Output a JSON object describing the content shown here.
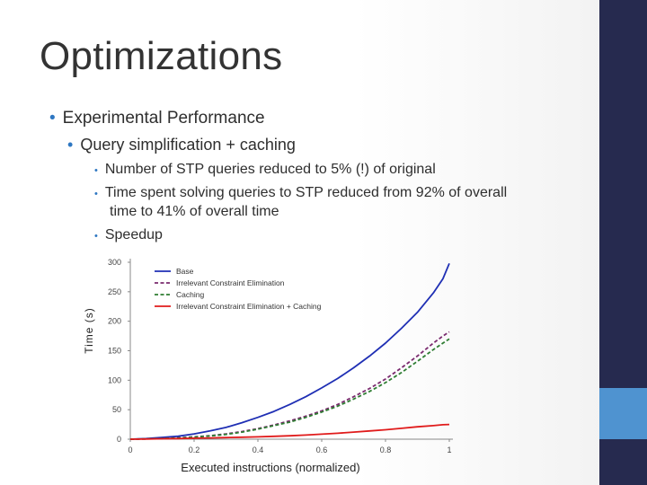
{
  "slide": {
    "title": "Optimizations",
    "bullets": {
      "level1": "Experimental Performance",
      "level2": "Query simplification + caching",
      "level3": [
        {
          "line1": "Number of STP queries reduced to 5% (!) of original",
          "line2": ""
        },
        {
          "line1": "Time spent solving queries to STP reduced from 92% of overall",
          "line2": "time to 41% of overall time"
        },
        {
          "line1": "Speedup",
          "line2": ""
        }
      ]
    },
    "bullet_glyph": "•",
    "colors": {
      "sidebar": "#262a4f",
      "accent": "#4f93d0",
      "bullet": "#2e77c2"
    }
  },
  "chart_data": {
    "type": "line",
    "title": "",
    "xlabel": "Executed instructions (normalized)",
    "ylabel": "Time (s)",
    "xlim": [
      0,
      1
    ],
    "ylim": [
      0,
      300
    ],
    "xticks": [
      "0",
      "0.2",
      "0.4",
      "0.6",
      "0.8",
      "1"
    ],
    "yticks": [
      "0",
      "50",
      "100",
      "150",
      "200",
      "250",
      "300"
    ],
    "legend_position": "top-left",
    "x": [
      0,
      0.05,
      0.1,
      0.15,
      0.2,
      0.25,
      0.3,
      0.35,
      0.4,
      0.45,
      0.5,
      0.55,
      0.6,
      0.65,
      0.7,
      0.75,
      0.8,
      0.85,
      0.9,
      0.95,
      0.98,
      1.0
    ],
    "series": [
      {
        "name": "Base",
        "color": "#1f2fb4",
        "dash": "solid",
        "values": [
          0,
          1,
          3,
          5,
          9,
          14,
          20,
          28,
          37,
          47,
          59,
          72,
          87,
          103,
          121,
          141,
          163,
          188,
          215,
          248,
          272,
          298
        ]
      },
      {
        "name": "Irrelevant Constraint Elimination",
        "color": "#7a2a6e",
        "dash": "dashed",
        "values": [
          0,
          0.5,
          1,
          2.5,
          4,
          6,
          9,
          13,
          18,
          24,
          31,
          39,
          48,
          59,
          72,
          86,
          102,
          121,
          141,
          163,
          175,
          182
        ]
      },
      {
        "name": "Caching",
        "color": "#2e7d32",
        "dash": "dashed",
        "values": [
          0,
          0.5,
          1,
          2,
          3.5,
          5.5,
          8,
          12,
          17,
          23,
          29,
          37,
          46,
          56,
          68,
          81,
          96,
          113,
          132,
          152,
          163,
          170
        ]
      },
      {
        "name": "Irrelevant Constraint Elimination + Caching",
        "color": "#e01b1b",
        "dash": "solid",
        "values": [
          0,
          0.3,
          0.7,
          1.1,
          1.6,
          2.1,
          2.7,
          3.3,
          4,
          4.8,
          5.8,
          7,
          8.5,
          10,
          12,
          14,
          16,
          18.5,
          21,
          23,
          24.5,
          25
        ]
      }
    ]
  }
}
